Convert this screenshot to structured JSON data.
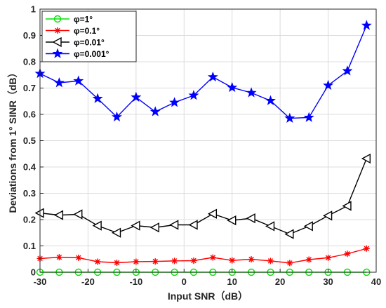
{
  "chart_data": {
    "type": "line",
    "xlabel": "Input SNR（dB）",
    "ylabel": "Deviations from 1° SINR（dB）",
    "xlim": [
      -30,
      40
    ],
    "ylim": [
      0,
      1
    ],
    "xticks": [
      -30,
      -20,
      -10,
      0,
      10,
      20,
      30,
      40
    ],
    "yticks": [
      0,
      0.1,
      0.2,
      0.3,
      0.4,
      0.5,
      0.6,
      0.7,
      0.8,
      0.9,
      1
    ],
    "grid": true,
    "legend_position": "top-left",
    "x": [
      -30,
      -26,
      -22,
      -18,
      -14,
      -10,
      -6,
      -2,
      2,
      6,
      10,
      14,
      18,
      22,
      26,
      30,
      34,
      38
    ],
    "series": [
      {
        "name": "φ=1°",
        "color": "#00e000",
        "marker": "circle",
        "values": [
          0,
          0,
          0,
          0,
          0,
          0,
          0,
          0,
          0,
          0,
          0,
          0,
          0,
          0,
          0,
          0,
          0,
          0
        ]
      },
      {
        "name": "φ=0.1°",
        "color": "#ff0000",
        "marker": "asterisk",
        "values": [
          0.052,
          0.057,
          0.055,
          0.04,
          0.036,
          0.04,
          0.041,
          0.043,
          0.044,
          0.056,
          0.045,
          0.049,
          0.043,
          0.035,
          0.048,
          0.055,
          0.07,
          0.09
        ]
      },
      {
        "name": "φ=0.01°",
        "color": "#000000",
        "marker": "triangle-left",
        "values": [
          0.225,
          0.217,
          0.22,
          0.177,
          0.15,
          0.177,
          0.17,
          0.18,
          0.18,
          0.222,
          0.197,
          0.205,
          0.175,
          0.145,
          0.175,
          0.215,
          0.252,
          0.432
        ]
      },
      {
        "name": "φ=0.001°",
        "color": "#0000ff",
        "marker": "star",
        "values": [
          0.755,
          0.72,
          0.727,
          0.66,
          0.59,
          0.665,
          0.61,
          0.645,
          0.672,
          0.742,
          0.702,
          0.682,
          0.652,
          0.585,
          0.588,
          0.71,
          0.765,
          0.938
        ]
      }
    ]
  }
}
